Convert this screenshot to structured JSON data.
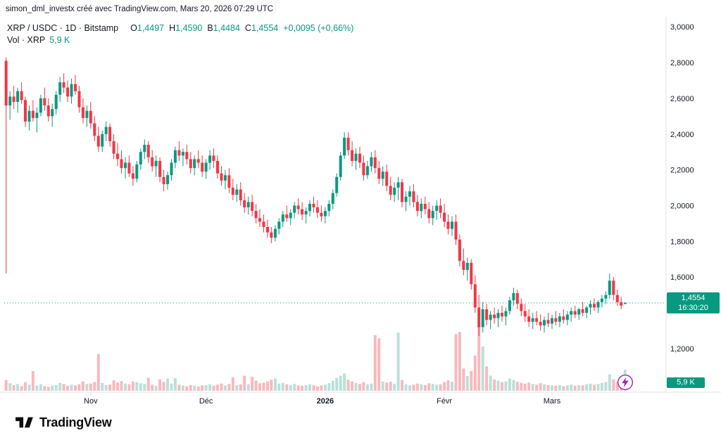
{
  "attribution": "simon_dml_investx créé avec TradingView.com, Mars 20, 2026 07:29 UTC",
  "legend": {
    "symbol": "XRP / USDC · 1D · Bitstamp",
    "ohlc": [
      {
        "key": "O",
        "value": "1,4497"
      },
      {
        "key": "H",
        "value": "1,4590"
      },
      {
        "key": "B",
        "value": "1,4484"
      },
      {
        "key": "C",
        "value": "1,4554"
      }
    ],
    "change": "+0,0095 (+0,66%)",
    "volume_label": "Vol · XRP",
    "volume_value": "5,9 K"
  },
  "price_badge": {
    "price": "1,4554",
    "countdown": "16:30:20"
  },
  "volume_badge": "5,9 K",
  "footer": {
    "brand": "TradingView"
  },
  "chart_data": {
    "type": "candlestick",
    "title": "XRP / USDC 1D Bitstamp",
    "price_range": [
      0.96,
      3.04
    ],
    "last_close": 1.4554,
    "volume_unit": "K",
    "legend_position": "top-left",
    "grid": false,
    "y_ticks": [
      {
        "label": "3,0000",
        "value": 3.0
      },
      {
        "label": "2,8000",
        "value": 2.8
      },
      {
        "label": "2,6000",
        "value": 2.6
      },
      {
        "label": "2,4000",
        "value": 2.4
      },
      {
        "label": "2,2000",
        "value": 2.2
      },
      {
        "label": "2,0000",
        "value": 2.0
      },
      {
        "label": "1,8000",
        "value": 1.8
      },
      {
        "label": "1,6000",
        "value": 1.6
      },
      {
        "label": "1,2000",
        "value": 1.2
      }
    ],
    "x_ticks": [
      {
        "label": "Nov",
        "index": 22,
        "bold": false
      },
      {
        "label": "Déc",
        "index": 52,
        "bold": false
      },
      {
        "label": "2026",
        "index": 83,
        "bold": true
      },
      {
        "label": "Févr",
        "index": 114,
        "bold": false
      },
      {
        "label": "Mars",
        "index": 142,
        "bold": false
      }
    ],
    "colors": {
      "up": "#089981",
      "down": "#f23645",
      "vol_up": "#b9e0d9",
      "vol_down": "#f7b9be",
      "axis_text": "#131722",
      "axis_line": "#e0e3eb",
      "last_price_line": "#089981",
      "badge_bg": "#089981",
      "boost": "#9c27b0"
    },
    "candles": [
      [
        2.81,
        2.83,
        1.62,
        2.56,
        3.0
      ],
      [
        2.56,
        2.64,
        2.48,
        2.61,
        2.1
      ],
      [
        2.61,
        2.67,
        2.54,
        2.58,
        1.6
      ],
      [
        2.58,
        2.66,
        2.52,
        2.64,
        1.9
      ],
      [
        2.64,
        2.69,
        2.57,
        2.59,
        1.3
      ],
      [
        2.59,
        2.61,
        2.44,
        2.47,
        2.4
      ],
      [
        2.47,
        2.56,
        2.42,
        2.53,
        1.7
      ],
      [
        2.53,
        2.59,
        2.47,
        2.49,
        5.5
      ],
      [
        2.49,
        2.55,
        2.41,
        2.52,
        1.5
      ],
      [
        2.52,
        2.62,
        2.5,
        2.6,
        1.8
      ],
      [
        2.6,
        2.66,
        2.53,
        2.56,
        1.3
      ],
      [
        2.56,
        2.6,
        2.47,
        2.5,
        1.1
      ],
      [
        2.5,
        2.57,
        2.44,
        2.54,
        1.4
      ],
      [
        2.54,
        2.64,
        2.51,
        2.62,
        1.6
      ],
      [
        2.62,
        2.72,
        2.58,
        2.69,
        2.2
      ],
      [
        2.69,
        2.74,
        2.63,
        2.66,
        1.9
      ],
      [
        2.66,
        2.7,
        2.58,
        2.61,
        1.4
      ],
      [
        2.61,
        2.71,
        2.57,
        2.68,
        1.7
      ],
      [
        2.68,
        2.73,
        2.62,
        2.64,
        1.5
      ],
      [
        2.64,
        2.67,
        2.52,
        2.55,
        1.8
      ],
      [
        2.55,
        2.6,
        2.46,
        2.49,
        2.6
      ],
      [
        2.49,
        2.56,
        2.44,
        2.53,
        1.9
      ],
      [
        2.53,
        2.58,
        2.43,
        2.46,
        2.0
      ],
      [
        2.46,
        2.5,
        2.36,
        2.39,
        2.4
      ],
      [
        2.39,
        2.44,
        2.3,
        2.33,
        10.2
      ],
      [
        2.33,
        2.42,
        2.3,
        2.4,
        2.2
      ],
      [
        2.4,
        2.47,
        2.36,
        2.44,
        1.6
      ],
      [
        2.44,
        2.46,
        2.33,
        2.36,
        1.7
      ],
      [
        2.36,
        2.4,
        2.26,
        2.29,
        2.9
      ],
      [
        2.29,
        2.35,
        2.22,
        2.26,
        2.3
      ],
      [
        2.26,
        2.31,
        2.18,
        2.21,
        2.7
      ],
      [
        2.21,
        2.27,
        2.15,
        2.24,
        2.0
      ],
      [
        2.24,
        2.28,
        2.16,
        2.18,
        1.8
      ],
      [
        2.18,
        2.22,
        2.11,
        2.15,
        2.6
      ],
      [
        2.15,
        2.25,
        2.13,
        2.23,
        2.4
      ],
      [
        2.23,
        2.32,
        2.2,
        2.3,
        2.1
      ],
      [
        2.3,
        2.37,
        2.26,
        2.34,
        1.9
      ],
      [
        2.34,
        2.36,
        2.24,
        2.27,
        3.6
      ],
      [
        2.27,
        2.31,
        2.19,
        2.22,
        1.7
      ],
      [
        2.22,
        2.28,
        2.16,
        2.25,
        1.4
      ],
      [
        2.25,
        2.27,
        2.13,
        2.16,
        3.2
      ],
      [
        2.16,
        2.2,
        2.08,
        2.12,
        2.5
      ],
      [
        2.12,
        2.19,
        2.09,
        2.17,
        3.4
      ],
      [
        2.17,
        2.26,
        2.14,
        2.24,
        2.0
      ],
      [
        2.24,
        2.33,
        2.21,
        2.31,
        3.5
      ],
      [
        2.31,
        2.36,
        2.25,
        2.28,
        1.7
      ],
      [
        2.28,
        2.32,
        2.22,
        2.3,
        1.5
      ],
      [
        2.3,
        2.34,
        2.23,
        2.26,
        1.3
      ],
      [
        2.26,
        2.3,
        2.18,
        2.21,
        1.6
      ],
      [
        2.21,
        2.28,
        2.17,
        2.26,
        1.4
      ],
      [
        2.26,
        2.31,
        2.21,
        2.24,
        1.2
      ],
      [
        2.24,
        2.28,
        2.16,
        2.19,
        1.5
      ],
      [
        2.19,
        2.26,
        2.15,
        2.24,
        1.6
      ],
      [
        2.24,
        2.31,
        2.2,
        2.28,
        1.8
      ],
      [
        2.28,
        2.32,
        2.21,
        2.25,
        1.4
      ],
      [
        2.25,
        2.28,
        2.15,
        2.18,
        1.7
      ],
      [
        2.18,
        2.22,
        2.11,
        2.14,
        2.0
      ],
      [
        2.14,
        2.2,
        2.09,
        2.17,
        1.5
      ],
      [
        2.17,
        2.21,
        2.07,
        2.1,
        1.9
      ],
      [
        2.1,
        2.15,
        2.03,
        2.06,
        3.8
      ],
      [
        2.06,
        2.12,
        2.02,
        2.09,
        1.6
      ],
      [
        2.09,
        2.13,
        2.0,
        2.03,
        1.8
      ],
      [
        2.03,
        2.07,
        1.96,
        1.99,
        4.2
      ],
      [
        1.99,
        2.05,
        1.95,
        2.02,
        1.8
      ],
      [
        2.02,
        2.06,
        1.94,
        1.97,
        3.9
      ],
      [
        1.97,
        2.01,
        1.9,
        1.93,
        2.8
      ],
      [
        1.93,
        1.98,
        1.88,
        1.91,
        2.1
      ],
      [
        1.91,
        1.95,
        1.85,
        1.88,
        2.3
      ],
      [
        1.88,
        1.92,
        1.82,
        1.85,
        2.6
      ],
      [
        1.85,
        1.88,
        1.79,
        1.82,
        3.1
      ],
      [
        1.82,
        1.89,
        1.8,
        1.87,
        3.4
      ],
      [
        1.87,
        1.93,
        1.84,
        1.91,
        2.0
      ],
      [
        1.91,
        1.97,
        1.88,
        1.95,
        2.2
      ],
      [
        1.95,
        2.0,
        1.91,
        1.93,
        1.8
      ],
      [
        1.93,
        1.98,
        1.89,
        1.96,
        1.6
      ],
      [
        1.96,
        2.02,
        1.93,
        2.0,
        1.9
      ],
      [
        2.0,
        2.04,
        1.95,
        1.98,
        1.5
      ],
      [
        1.98,
        2.02,
        1.92,
        1.95,
        1.4
      ],
      [
        1.95,
        1.99,
        1.9,
        1.97,
        1.6
      ],
      [
        1.97,
        2.03,
        1.94,
        2.01,
        1.8
      ],
      [
        2.01,
        2.05,
        1.96,
        1.99,
        1.5
      ],
      [
        1.99,
        2.03,
        1.93,
        1.96,
        1.3
      ],
      [
        1.96,
        2.0,
        1.91,
        1.94,
        1.5
      ],
      [
        1.94,
        1.99,
        1.9,
        1.97,
        1.7
      ],
      [
        1.97,
        2.03,
        1.94,
        2.01,
        2.1
      ],
      [
        2.01,
        2.09,
        1.98,
        2.07,
        2.8
      ],
      [
        2.07,
        2.18,
        2.05,
        2.16,
        3.6
      ],
      [
        2.16,
        2.3,
        2.14,
        2.28,
        4.2
      ],
      [
        2.28,
        2.41,
        2.26,
        2.38,
        4.8
      ],
      [
        2.38,
        2.41,
        2.28,
        2.31,
        3.1
      ],
      [
        2.31,
        2.36,
        2.22,
        2.25,
        2.6
      ],
      [
        2.25,
        2.32,
        2.2,
        2.29,
        2.2
      ],
      [
        2.29,
        2.33,
        2.21,
        2.24,
        1.9
      ],
      [
        2.24,
        2.28,
        2.14,
        2.17,
        2.4
      ],
      [
        2.17,
        2.25,
        2.15,
        2.22,
        1.8
      ],
      [
        2.22,
        2.3,
        2.19,
        2.27,
        2.0
      ],
      [
        2.27,
        2.31,
        2.18,
        2.21,
        15.5
      ],
      [
        2.21,
        2.25,
        2.12,
        2.15,
        14.6
      ],
      [
        2.15,
        2.22,
        2.11,
        2.19,
        2.6
      ],
      [
        2.19,
        2.23,
        2.08,
        2.11,
        2.3
      ],
      [
        2.11,
        2.16,
        2.03,
        2.06,
        2.5
      ],
      [
        2.06,
        2.13,
        2.02,
        2.1,
        1.9
      ],
      [
        2.1,
        2.16,
        2.03,
        2.13,
        16.2
      ],
      [
        2.13,
        2.15,
        1.99,
        2.02,
        3.0
      ],
      [
        2.02,
        2.08,
        1.97,
        2.05,
        1.8
      ],
      [
        2.05,
        2.11,
        2.0,
        2.08,
        1.5
      ],
      [
        2.08,
        2.12,
        1.99,
        2.02,
        1.7
      ],
      [
        2.02,
        2.06,
        1.94,
        1.97,
        2.0
      ],
      [
        1.97,
        2.04,
        1.93,
        2.01,
        1.8
      ],
      [
        2.01,
        2.05,
        1.95,
        1.98,
        1.6
      ],
      [
        1.98,
        2.02,
        1.9,
        1.93,
        2.1
      ],
      [
        1.93,
        2.0,
        1.89,
        1.97,
        1.9
      ],
      [
        1.97,
        2.03,
        1.92,
        2.0,
        1.7
      ],
      [
        2.0,
        2.04,
        1.93,
        1.96,
        1.8
      ],
      [
        1.96,
        2.01,
        1.88,
        1.91,
        2.4
      ],
      [
        1.91,
        1.95,
        1.84,
        1.87,
        2.9
      ],
      [
        1.87,
        1.94,
        1.83,
        1.91,
        2.5
      ],
      [
        1.91,
        1.95,
        1.78,
        1.81,
        15.8
      ],
      [
        1.81,
        1.84,
        1.66,
        1.69,
        16.4
      ],
      [
        1.69,
        1.76,
        1.61,
        1.64,
        6.2
      ],
      [
        1.64,
        1.71,
        1.58,
        1.68,
        4.1
      ],
      [
        1.68,
        1.7,
        1.53,
        1.56,
        5.5
      ],
      [
        1.56,
        1.61,
        1.4,
        1.43,
        9.8
      ],
      [
        1.43,
        1.5,
        1.27,
        1.32,
        18.6
      ],
      [
        1.32,
        1.46,
        1.29,
        1.42,
        12.4
      ],
      [
        1.42,
        1.45,
        1.33,
        1.36,
        6.8
      ],
      [
        1.36,
        1.41,
        1.31,
        1.39,
        4.2
      ],
      [
        1.39,
        1.43,
        1.34,
        1.37,
        3.1
      ],
      [
        1.37,
        1.42,
        1.32,
        1.4,
        2.8
      ],
      [
        1.4,
        1.44,
        1.35,
        1.38,
        2.4
      ],
      [
        1.38,
        1.43,
        1.33,
        1.41,
        2.6
      ],
      [
        1.41,
        1.49,
        1.39,
        1.47,
        3.4
      ],
      [
        1.47,
        1.54,
        1.44,
        1.51,
        3.0
      ],
      [
        1.51,
        1.53,
        1.42,
        1.45,
        2.5
      ],
      [
        1.45,
        1.48,
        1.38,
        1.41,
        2.2
      ],
      [
        1.41,
        1.45,
        1.35,
        1.38,
        2.0
      ],
      [
        1.38,
        1.42,
        1.32,
        1.35,
        2.3
      ],
      [
        1.35,
        1.4,
        1.31,
        1.37,
        1.9
      ],
      [
        1.37,
        1.41,
        1.33,
        1.35,
        1.7
      ],
      [
        1.35,
        1.39,
        1.3,
        1.33,
        2.1
      ],
      [
        1.33,
        1.38,
        1.29,
        1.36,
        1.8
      ],
      [
        1.36,
        1.4,
        1.32,
        1.34,
        1.6
      ],
      [
        1.34,
        1.39,
        1.31,
        1.37,
        1.5
      ],
      [
        1.37,
        1.41,
        1.33,
        1.35,
        1.4
      ],
      [
        1.35,
        1.4,
        1.32,
        1.38,
        1.6
      ],
      [
        1.38,
        1.42,
        1.34,
        1.36,
        1.3
      ],
      [
        1.36,
        1.41,
        1.33,
        1.39,
        1.5
      ],
      [
        1.39,
        1.43,
        1.35,
        1.41,
        1.7
      ],
      [
        1.41,
        1.44,
        1.37,
        1.39,
        1.4
      ],
      [
        1.39,
        1.43,
        1.36,
        1.42,
        1.6
      ],
      [
        1.42,
        1.46,
        1.38,
        1.4,
        1.5
      ],
      [
        1.4,
        1.44,
        1.37,
        1.43,
        1.8
      ],
      [
        1.43,
        1.47,
        1.39,
        1.45,
        2.0
      ],
      [
        1.45,
        1.48,
        1.41,
        1.43,
        1.7
      ],
      [
        1.43,
        1.47,
        1.4,
        1.46,
        1.9
      ],
      [
        1.46,
        1.5,
        1.43,
        1.48,
        2.2
      ],
      [
        1.48,
        1.52,
        1.45,
        1.5,
        2.4
      ],
      [
        1.5,
        1.62,
        1.48,
        1.58,
        4.6
      ],
      [
        1.58,
        1.6,
        1.47,
        1.5,
        3.2
      ],
      [
        1.5,
        1.53,
        1.44,
        1.46,
        2.6
      ],
      [
        1.46,
        1.49,
        1.42,
        1.44,
        2.1
      ],
      [
        1.4497,
        1.459,
        1.4484,
        1.4554,
        5.9
      ]
    ]
  }
}
